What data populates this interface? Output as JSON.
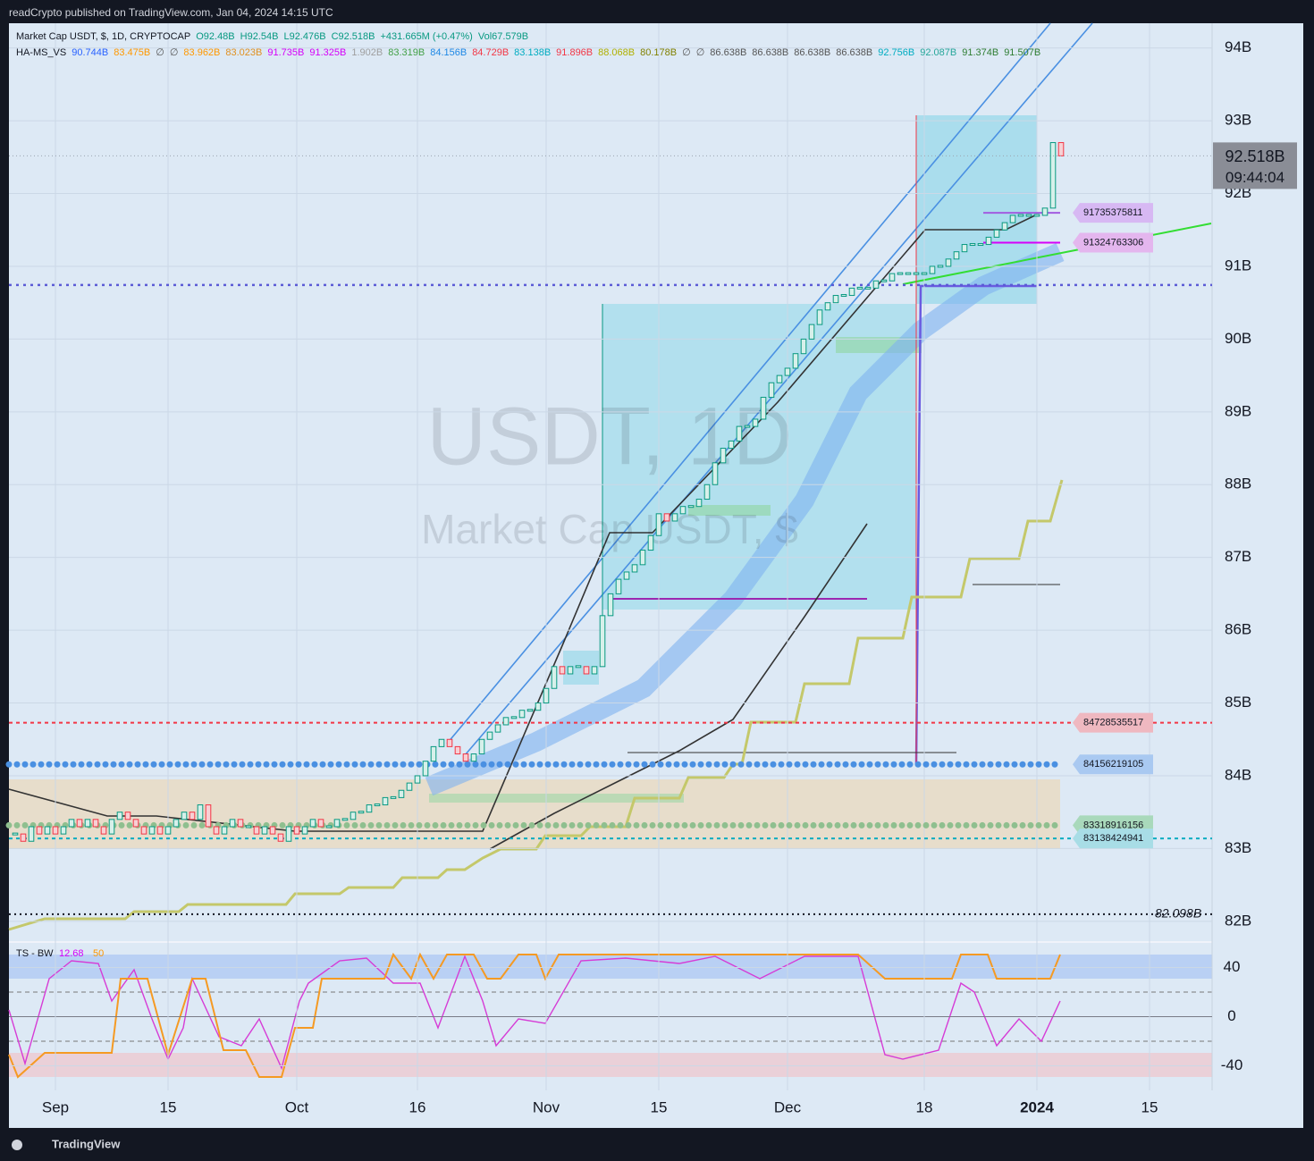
{
  "header": {
    "publisher": "readCrypto published on TradingView.com, Jan 04, 2024 14:15 UTC"
  },
  "footer": {
    "brand": "TradingView"
  },
  "chart_data": {
    "type": "candlestick",
    "title": "Market Cap USDT, $, 1D, CRYPTOCAP",
    "ohlc": [
      "O92.48B",
      "H92.54B",
      "L92.476B",
      "C92.518B",
      "+431.665M (+0.47%)",
      "Vol67.579B"
    ],
    "ohlc_color": "#089981",
    "watermark": [
      "USDT, 1D",
      "Market Cap USDT, $"
    ],
    "colors": {
      "up": "#089981",
      "down": "#f23645"
    },
    "categories": [
      null,
      null,
      null,
      null,
      null,
      "Sep",
      null,
      null,
      null,
      null,
      null,
      null,
      null,
      null,
      null,
      null,
      null,
      null,
      null,
      "15",
      null,
      null,
      null,
      null,
      null,
      null,
      null,
      null,
      null,
      null,
      null,
      null,
      null,
      null,
      null,
      "Oct",
      null,
      null,
      null,
      null,
      null,
      null,
      null,
      null,
      null,
      null,
      null,
      null,
      null,
      null,
      "16",
      null,
      null,
      null,
      null,
      null,
      null,
      null,
      null,
      null,
      null,
      null,
      null,
      null,
      null,
      null,
      "Nov",
      null,
      null,
      null,
      null,
      null,
      null,
      null,
      null,
      null,
      null,
      null,
      null,
      null,
      "15",
      null,
      null,
      null,
      null,
      null,
      null,
      null,
      null,
      null,
      null,
      null,
      null,
      null,
      null,
      null,
      "Dec",
      null,
      null,
      null,
      null,
      null,
      null,
      null,
      null,
      null,
      null,
      null,
      null,
      null,
      null,
      null,
      null,
      "18",
      null,
      null,
      null,
      null,
      null,
      null,
      null,
      null,
      null,
      null,
      null,
      null,
      null,
      "2024",
      null,
      null,
      null,
      null,
      null,
      null,
      null,
      null,
      null,
      null,
      null,
      null,
      null,
      "15",
      null,
      null,
      null,
      null,
      null,
      null,
      null
    ],
    "values": [
      83.2,
      83.1,
      83.3,
      83.2,
      83.3,
      83.2,
      83.3,
      83.4,
      83.3,
      83.4,
      83.3,
      83.2,
      83.4,
      83.5,
      83.4,
      83.3,
      83.2,
      83.3,
      83.2,
      83.3,
      83.4,
      83.5,
      83.4,
      83.6,
      83.3,
      83.2,
      83.3,
      83.4,
      83.3,
      83.3,
      83.2,
      83.3,
      83.2,
      83.1,
      83.3,
      83.2,
      83.3,
      83.4,
      83.3,
      83.3,
      83.4,
      83.4,
      83.5,
      83.5,
      83.6,
      83.6,
      83.7,
      83.7,
      83.8,
      83.9,
      84.0,
      84.2,
      84.4,
      84.5,
      84.4,
      84.3,
      84.2,
      84.3,
      84.5,
      84.6,
      84.7,
      84.8,
      84.8,
      84.9,
      84.9,
      85.0,
      85.2,
      85.5,
      85.4,
      85.5,
      85.5,
      85.4,
      85.5,
      86.2,
      86.5,
      86.7,
      86.8,
      86.9,
      87.1,
      87.3,
      87.6,
      87.5,
      87.6,
      87.7,
      87.7,
      87.8,
      88.0,
      88.3,
      88.5,
      88.6,
      88.8,
      88.8,
      88.9,
      89.2,
      89.4,
      89.5,
      89.6,
      89.8,
      90.0,
      90.2,
      90.4,
      90.5,
      90.6,
      90.6,
      90.7,
      90.7,
      90.7,
      90.8,
      90.8,
      90.9,
      90.9,
      90.9,
      90.9,
      90.9,
      91.0,
      91.0,
      91.1,
      91.2,
      91.3,
      91.3,
      91.3,
      91.4,
      91.5,
      91.6,
      91.7,
      91.7,
      91.7,
      91.7,
      91.8,
      92.7,
      92.518,
      null,
      null,
      null,
      null,
      null,
      null,
      null,
      null,
      null,
      null,
      null,
      null,
      null,
      null,
      null,
      null,
      null,
      null
    ],
    "ylim": [
      81.74,
      94.34
    ],
    "yticks": [
      {
        "value": 82,
        "label": "82B"
      },
      {
        "value": 83,
        "label": "83B"
      },
      {
        "value": 84,
        "label": "84B"
      },
      {
        "value": 85,
        "label": "85B"
      },
      {
        "value": 86,
        "label": "86B"
      },
      {
        "value": 87,
        "label": "87B"
      },
      {
        "value": 88,
        "label": "88B"
      },
      {
        "value": 89,
        "label": "89B"
      },
      {
        "value": 90,
        "label": "90B"
      },
      {
        "value": 91,
        "label": "91B"
      },
      {
        "value": 92,
        "label": "92B"
      },
      {
        "value": 93,
        "label": "93B"
      },
      {
        "value": 94,
        "label": "94B"
      }
    ],
    "last_price": {
      "value": 92.518,
      "label": "92.518B",
      "countdown": "09:44:04"
    },
    "indicator": {
      "name": "HA-MS_VS",
      "values": [
        "90.744B",
        "83.475B",
        "∅",
        "∅",
        "83.962B",
        "83.023B",
        "91.735B",
        "91.325B",
        "1.902B",
        "83.319B",
        "84.156B",
        "84.729B",
        "83.138B",
        "91.896B",
        "88.068B",
        "80.178B",
        "∅",
        "∅",
        "86.638B",
        "86.638B",
        "86.638B",
        "86.638B",
        "92.756B",
        "92.087B",
        "91.374B",
        "91.507B"
      ],
      "colors": [
        "#2962ff",
        "#ff9800",
        "#555555",
        "#555555",
        "#ff9800",
        "#e09020",
        "#d500f9",
        "#d500f9",
        "#9e9e9e",
        "#43a047",
        "#1e88e5",
        "#f23645",
        "#00acc1",
        "#f23645",
        "#b0b000",
        "#808000",
        "#555555",
        "#555555",
        "#555555",
        "#555555",
        "#555555",
        "#555555",
        "#00acc1",
        "#26a69a",
        "#2e7d32",
        "#2e7d32"
      ]
    },
    "levels": [
      {
        "value": 91.735375811,
        "label": "91735375811",
        "color": "#a25ce0",
        "box": "#d7b8f3",
        "style": "solid"
      },
      {
        "value": 91.324763306,
        "label": "91324763306",
        "color": "#d500f9",
        "box": "#e4b6ee",
        "style": "solid"
      },
      {
        "value": 84.728535517,
        "label": "84728535517",
        "color": "#f23645",
        "box": "#efb8c0",
        "style": "cross"
      },
      {
        "value": 84.156219105,
        "label": "84156219105",
        "color": "#4a90e2",
        "box": "#a9c9f1",
        "style": "dots"
      },
      {
        "value": 83.318916156,
        "label": "83318916156",
        "color": "#8fbf8f",
        "box": "#a9d9bb",
        "style": "dots"
      },
      {
        "value": 83.138424941,
        "label": "83138424941",
        "color": "#00acc1",
        "box": "#a8dde6",
        "style": "cross"
      },
      {
        "value": 82.098,
        "label": "82.098B",
        "color": "#131722",
        "style": "dotted"
      }
    ],
    "hlines": [
      {
        "value": 90.744,
        "color": "#5b5bd6"
      }
    ],
    "oscillator": {
      "name": "TS - BW",
      "params": [
        "12.68",
        "50"
      ],
      "param_colors": [
        "#d500f9",
        "#ff9800"
      ],
      "ylim": [
        -60,
        60
      ],
      "yticks": [
        40,
        0,
        -40
      ]
    }
  }
}
